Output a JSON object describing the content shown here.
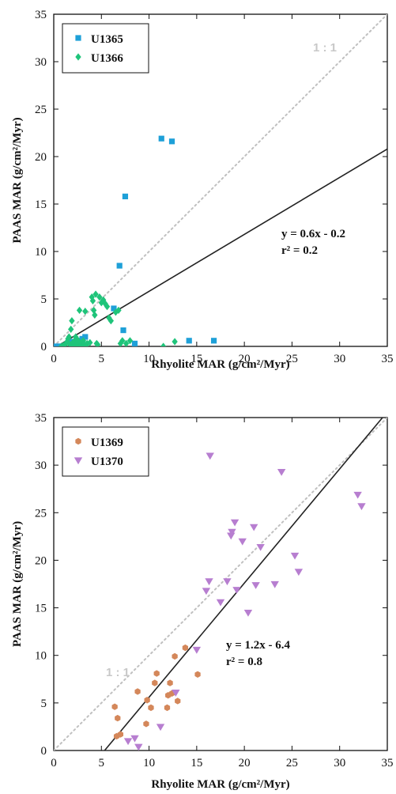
{
  "colors": {
    "U1365": "#1ea0d8",
    "U1366": "#1fc47a",
    "U1369": "#d4875a",
    "U1370": "#b77ed0",
    "fit": "#222222",
    "one_to_one": "#c0c0c0"
  },
  "chart_data": [
    {
      "type": "scatter",
      "xlabel": "Rhyolite MAR (g/cm²/Myr)",
      "ylabel": "PAAS MAR  (g/cm²/Myr)",
      "xlim": [
        0,
        35
      ],
      "ylim": [
        0,
        35
      ],
      "x_ticks": [
        "0",
        "5",
        "10",
        "15",
        "20",
        "25",
        "30",
        "35"
      ],
      "y_ticks": [
        "0",
        "5",
        "10",
        "15",
        "20",
        "25",
        "30",
        "35"
      ],
      "grid": false,
      "legend_placement": "top-left",
      "one_to_one_label": "1 : 1",
      "fit": {
        "slope": 0.6,
        "intercept": -0.2,
        "equation": "y = 0.6x - 0.2",
        "r2": "r² = 0.2"
      },
      "series": [
        {
          "name": "U1365",
          "marker": "square",
          "points": [
            [
              0.3,
              0
            ],
            [
              0.5,
              0
            ],
            [
              0.8,
              0
            ],
            [
              1.8,
              0.5
            ],
            [
              2.5,
              0.6
            ],
            [
              3.0,
              0.8
            ],
            [
              3.3,
              1.0
            ],
            [
              6.3,
              4.0
            ],
            [
              6.9,
              8.5
            ],
            [
              7.3,
              1.7
            ],
            [
              7.5,
              15.8
            ],
            [
              8.5,
              0.3
            ],
            [
              11.3,
              21.9
            ],
            [
              12.4,
              21.6
            ],
            [
              14.2,
              0.6
            ],
            [
              16.8,
              0.6
            ]
          ]
        },
        {
          "name": "U1366",
          "marker": "diamond",
          "points": [
            [
              0.8,
              0
            ],
            [
              1.0,
              0.1
            ],
            [
              1.2,
              0.2
            ],
            [
              1.4,
              0.5
            ],
            [
              1.5,
              0.8
            ],
            [
              1.6,
              1.0
            ],
            [
              1.7,
              0.2
            ],
            [
              1.8,
              1.8
            ],
            [
              1.9,
              2.7
            ],
            [
              2.0,
              0.4
            ],
            [
              2.1,
              0
            ],
            [
              2.2,
              0.6
            ],
            [
              2.3,
              1.0
            ],
            [
              2.4,
              0.2
            ],
            [
              2.5,
              0.7
            ],
            [
              2.6,
              0.1
            ],
            [
              2.7,
              3.8
            ],
            [
              2.8,
              0.4
            ],
            [
              2.9,
              0.3
            ],
            [
              3.0,
              0
            ],
            [
              3.1,
              0.6
            ],
            [
              3.2,
              0.2
            ],
            [
              3.3,
              3.7
            ],
            [
              3.4,
              0.1
            ],
            [
              3.5,
              0.3
            ],
            [
              3.8,
              0.4
            ],
            [
              4.0,
              5.2
            ],
            [
              4.1,
              4.8
            ],
            [
              4.2,
              3.8
            ],
            [
              4.3,
              3.3
            ],
            [
              4.4,
              5.5
            ],
            [
              4.5,
              0.3
            ],
            [
              4.6,
              0.2
            ],
            [
              4.8,
              5.2
            ],
            [
              5.0,
              4.6
            ],
            [
              5.2,
              4.9
            ],
            [
              5.4,
              4.5
            ],
            [
              5.6,
              4.2
            ],
            [
              5.8,
              3.0
            ],
            [
              6.0,
              2.7
            ],
            [
              6.5,
              3.6
            ],
            [
              6.8,
              3.8
            ],
            [
              7.0,
              0.3
            ],
            [
              7.2,
              0.6
            ],
            [
              7.6,
              0.3
            ],
            [
              8.0,
              0.6
            ],
            [
              11.5,
              0
            ],
            [
              12.7,
              0.5
            ]
          ]
        }
      ]
    },
    {
      "type": "scatter",
      "xlabel": "Rhyolite MAR (g/cm²/Myr)",
      "ylabel": "PAAS MAR  (g/cm²/Myr)",
      "xlim": [
        0,
        35
      ],
      "ylim": [
        0,
        35
      ],
      "x_ticks": [
        "0",
        "5",
        "10",
        "15",
        "20",
        "25",
        "30",
        "35"
      ],
      "y_ticks": [
        "0",
        "5",
        "10",
        "15",
        "20",
        "25",
        "30",
        "35"
      ],
      "grid": false,
      "legend_placement": "top-left",
      "one_to_one_label": "1 : 1",
      "fit": {
        "slope": 1.2,
        "intercept": -6.4,
        "equation": "y = 1.2x - 6.4",
        "r2": "r² = 0.8"
      },
      "series": [
        {
          "name": "U1369",
          "marker": "hexagon",
          "points": [
            [
              6.4,
              4.6
            ],
            [
              6.6,
              1.5
            ],
            [
              6.7,
              3.4
            ],
            [
              7.0,
              1.7
            ],
            [
              8.8,
              6.2
            ],
            [
              9.7,
              2.8
            ],
            [
              9.8,
              5.3
            ],
            [
              10.2,
              4.5
            ],
            [
              10.6,
              7.1
            ],
            [
              10.8,
              8.1
            ],
            [
              11.9,
              4.5
            ],
            [
              12.0,
              5.8
            ],
            [
              12.2,
              7.1
            ],
            [
              12.4,
              6.0
            ],
            [
              12.7,
              9.9
            ],
            [
              13.0,
              5.2
            ],
            [
              13.8,
              10.8
            ],
            [
              15.1,
              8.0
            ]
          ]
        },
        {
          "name": "U1370",
          "marker": "triangle-down",
          "points": [
            [
              7.8,
              1.0
            ],
            [
              8.5,
              1.3
            ],
            [
              8.9,
              0.4
            ],
            [
              11.2,
              2.5
            ],
            [
              12.8,
              6.1
            ],
            [
              15.0,
              10.6
            ],
            [
              16.0,
              16.8
            ],
            [
              16.3,
              17.8
            ],
            [
              16.4,
              31.0
            ],
            [
              17.5,
              15.6
            ],
            [
              18.2,
              17.8
            ],
            [
              18.6,
              22.6
            ],
            [
              18.7,
              23.0
            ],
            [
              19.0,
              24.0
            ],
            [
              19.2,
              16.9
            ],
            [
              19.8,
              22.0
            ],
            [
              20.4,
              14.5
            ],
            [
              21.0,
              23.5
            ],
            [
              21.2,
              17.4
            ],
            [
              21.7,
              21.4
            ],
            [
              23.2,
              17.5
            ],
            [
              23.9,
              29.3
            ],
            [
              25.3,
              20.5
            ],
            [
              25.7,
              18.8
            ],
            [
              31.9,
              26.9
            ],
            [
              32.3,
              25.7
            ]
          ]
        }
      ]
    }
  ]
}
